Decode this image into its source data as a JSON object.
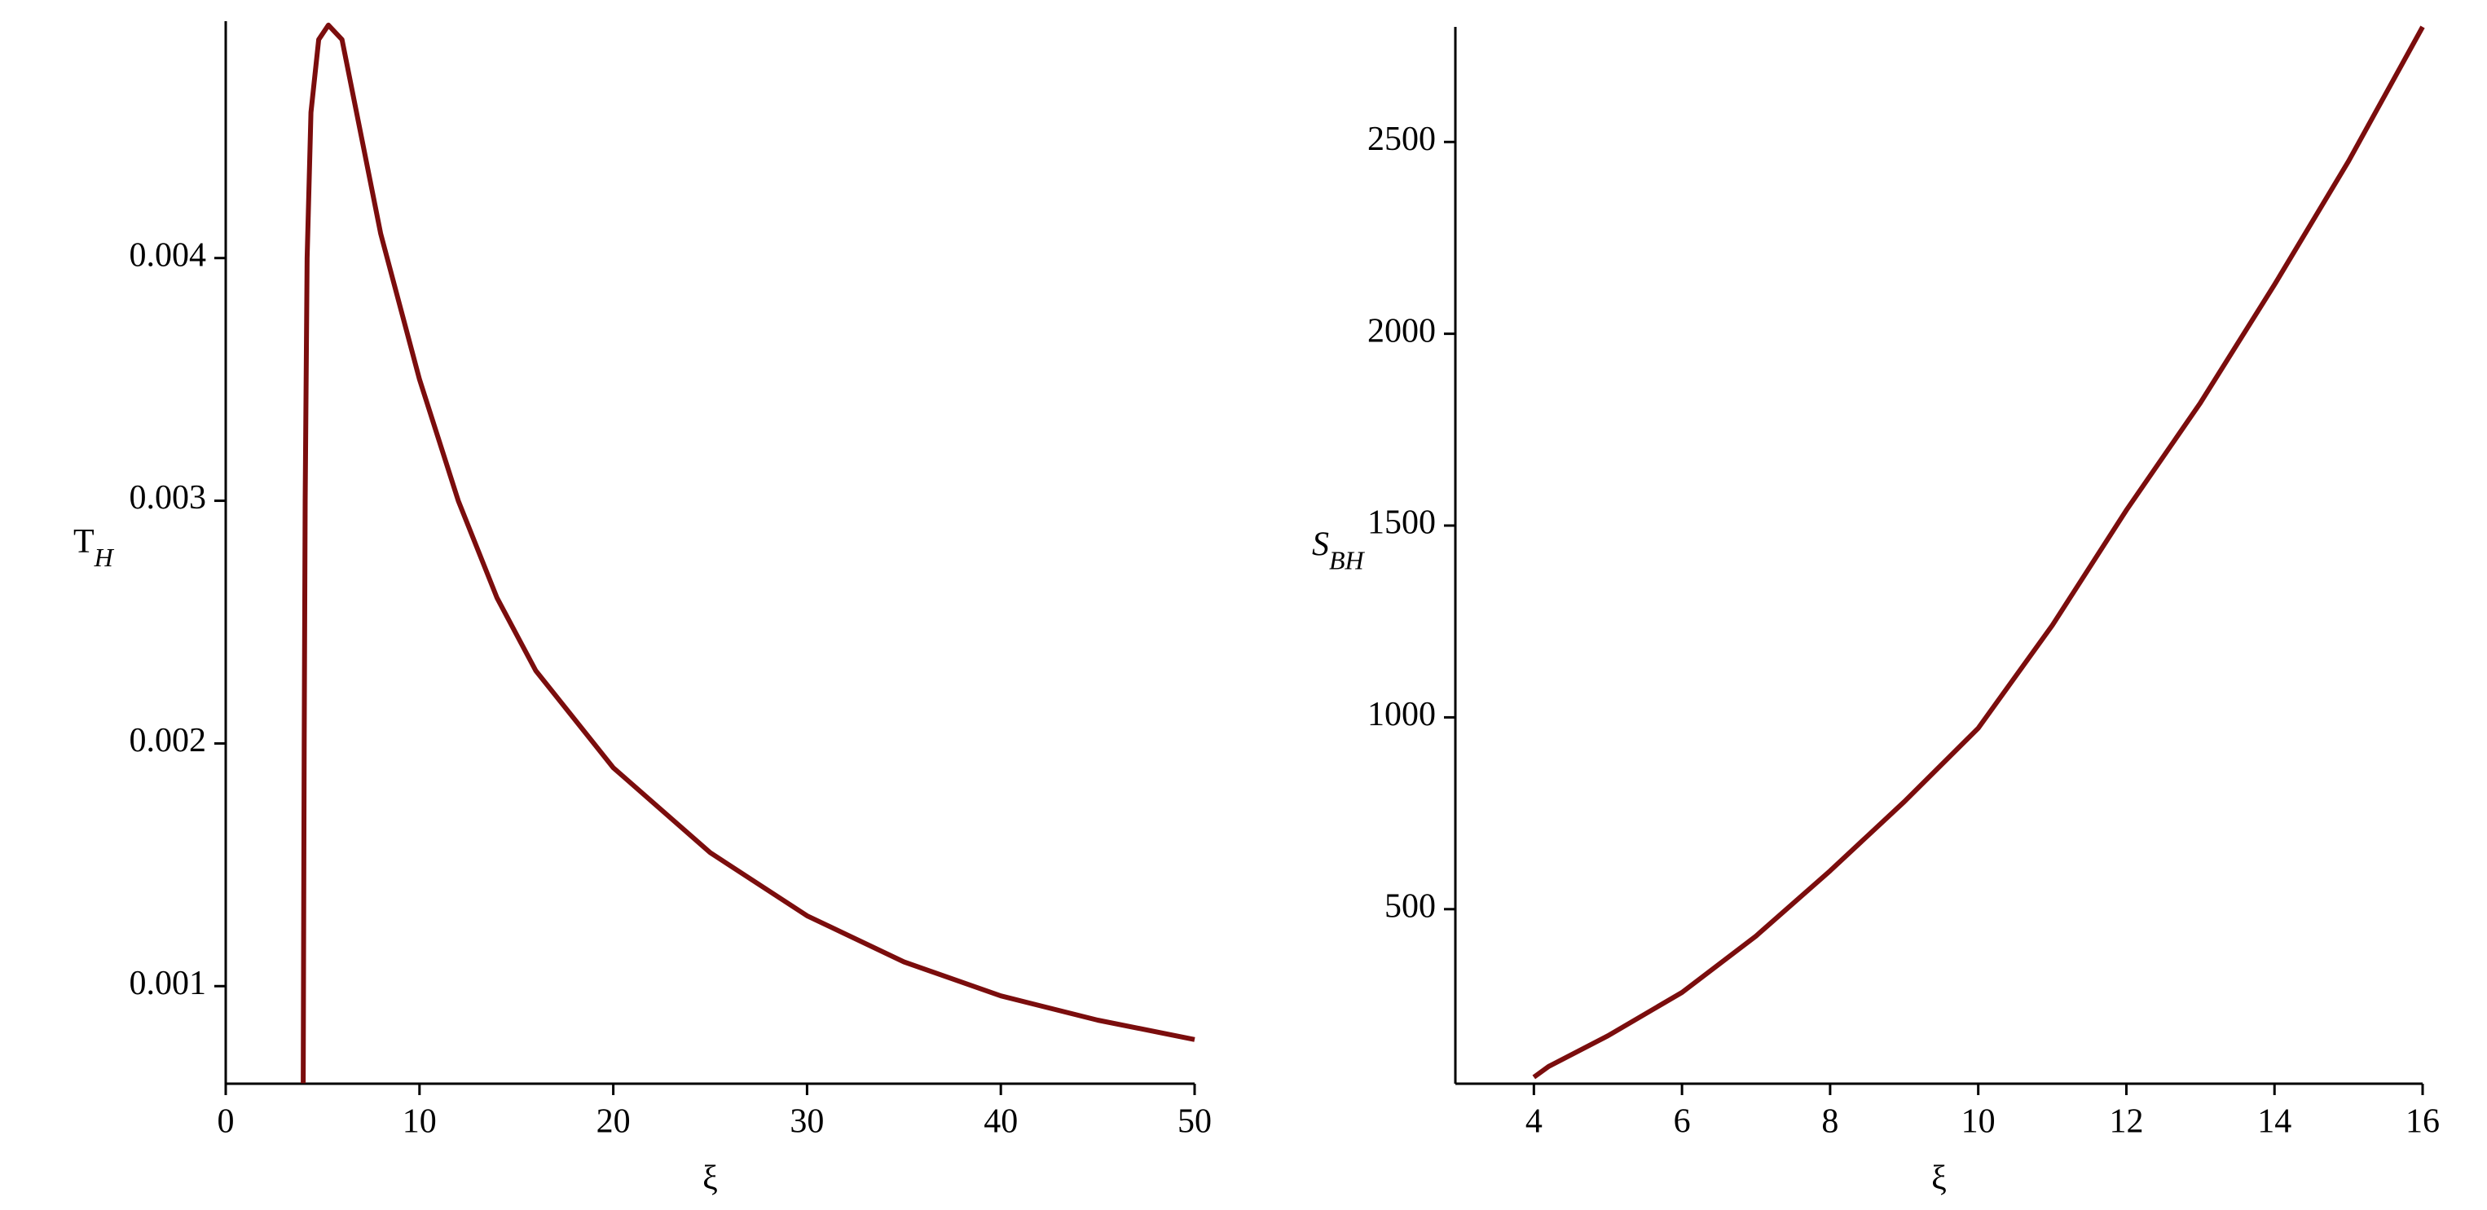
{
  "chart_data": [
    {
      "type": "line",
      "xlabel": "ξ",
      "ylabel": "T",
      "ylabel_sub": "H",
      "xlim": [
        0,
        50
      ],
      "ylim": [
        0.000598,
        0.004976
      ],
      "xticks": [
        0,
        10,
        20,
        30,
        40,
        50
      ],
      "yticks": [
        0.001,
        0.002,
        0.003,
        0.004
      ],
      "series": [
        {
          "color": "#7b0d0d",
          "x": [
            4.0,
            4.05,
            4.1,
            4.2,
            4.4,
            4.8,
            5.3,
            6,
            7,
            8,
            10,
            12,
            14,
            16,
            20,
            25,
            30,
            35,
            40,
            45,
            50
          ],
          "values": [
            0.0006,
            0.002,
            0.003,
            0.004,
            0.0046,
            0.0049,
            0.00496,
            0.0049,
            0.0045,
            0.0041,
            0.0035,
            0.003,
            0.0026,
            0.0023,
            0.0019,
            0.00155,
            0.00129,
            0.0011,
            0.00096,
            0.00086,
            0.00078
          ]
        }
      ]
    },
    {
      "type": "line",
      "xlabel": "ξ",
      "ylabel": "S",
      "ylabel_sub": "BH",
      "xlim": [
        2.94,
        16
      ],
      "ylim": [
        45,
        2800
      ],
      "xticks": [
        4,
        6,
        8,
        10,
        12,
        14,
        16
      ],
      "yticks": [
        500,
        1000,
        1500,
        2000,
        2500
      ],
      "series": [
        {
          "color": "#7b0d0d",
          "x": [
            4,
            4.2,
            5,
            6,
            7,
            8,
            9,
            10,
            11,
            12,
            13,
            14,
            15,
            16
          ],
          "values": [
            62,
            90,
            170,
            283,
            430,
            600,
            780,
            972,
            1240,
            1540,
            1820,
            2128,
            2450,
            2800
          ]
        }
      ]
    }
  ]
}
